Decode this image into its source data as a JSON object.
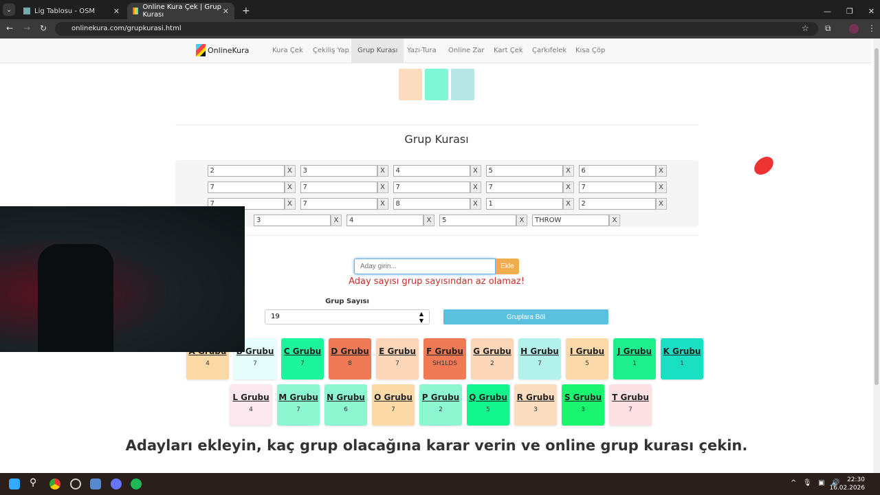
{
  "browser": {
    "tabs": [
      {
        "label": "Lig Tablosu - OSM"
      },
      {
        "label": "Online Kura Çek | Grup Kurası"
      }
    ],
    "url": "onlinekura.com/grupkurasi.html"
  },
  "nav": {
    "logo": "OnlineKura",
    "items": [
      "Kura Çek",
      "Çekiliş Yap",
      "Grup Kurası",
      "Yazı-Tura",
      "Online Zar",
      "Kart Çek",
      "Çarkıfelek",
      "Kısa Çöp"
    ],
    "active": "Grup Kurası"
  },
  "swatches": [
    "#fcdcbe",
    "#7ff7d4",
    "#b6e6e6"
  ],
  "title": "Grup Kurası",
  "entries": [
    [
      "2",
      "3",
      "4",
      "5",
      "6"
    ],
    [
      "7",
      "7",
      "7",
      "7",
      "7"
    ],
    [
      "7",
      "7",
      "8",
      "1",
      "2"
    ],
    [
      "3",
      "4",
      "5",
      "THROW"
    ]
  ],
  "remove_label": "X",
  "add": {
    "placeholder": "Aday girin...",
    "button": "Ekle"
  },
  "error": "Aday sayısı grup sayısından az olamaz!",
  "group_count": {
    "label": "Grup Sayısı",
    "value": "19"
  },
  "split_button": "Gruplara Böl",
  "groups": [
    {
      "name": "A Grubu",
      "value": "4",
      "color": "#fbd9a6"
    },
    {
      "name": "B Grubu",
      "value": "7",
      "color": "#e6fffd"
    },
    {
      "name": "C Grubu",
      "value": "7",
      "color": "#1cf59c"
    },
    {
      "name": "D Grubu",
      "value": "8",
      "color": "#f07a55"
    },
    {
      "name": "E Grubu",
      "value": "7",
      "color": "#fcd6b8"
    },
    {
      "name": "F Grubu",
      "value": "SH1LDS",
      "color": "#f07a55"
    },
    {
      "name": "G Grubu",
      "value": "2",
      "color": "#fcd6b8"
    },
    {
      "name": "H Grubu",
      "value": "7",
      "color": "#b3f2ea"
    },
    {
      "name": "I Grubu",
      "value": "5",
      "color": "#fcd9a8"
    },
    {
      "name": "J Grubu",
      "value": "1",
      "color": "#1bf08c"
    },
    {
      "name": "K Grubu",
      "value": "1",
      "color": "#19dfc3"
    },
    {
      "name": "L Grubu",
      "value": "4",
      "color": "#fbe8ee"
    },
    {
      "name": "M Grubu",
      "value": "7",
      "color": "#8cf7d0"
    },
    {
      "name": "N Grubu",
      "value": "6",
      "color": "#8cf7d0"
    },
    {
      "name": "O Grubu",
      "value": "7",
      "color": "#fcdaa8"
    },
    {
      "name": "P Grubu",
      "value": "2",
      "color": "#8cf7d0"
    },
    {
      "name": "Q Grubu",
      "value": "5",
      "color": "#12f58e"
    },
    {
      "name": "R Grubu",
      "value": "3",
      "color": "#fcdcbe"
    },
    {
      "name": "S Grubu",
      "value": "3",
      "color": "#19f56e"
    },
    {
      "name": "T Grubu",
      "value": "7",
      "color": "#fde0e4"
    }
  ],
  "headline": "Adayları ekleyin, kaç grup olacağına karar verin ve online grup kurası çekin.",
  "taskbar": {
    "time": "22:30",
    "date": "16.02.2026"
  }
}
